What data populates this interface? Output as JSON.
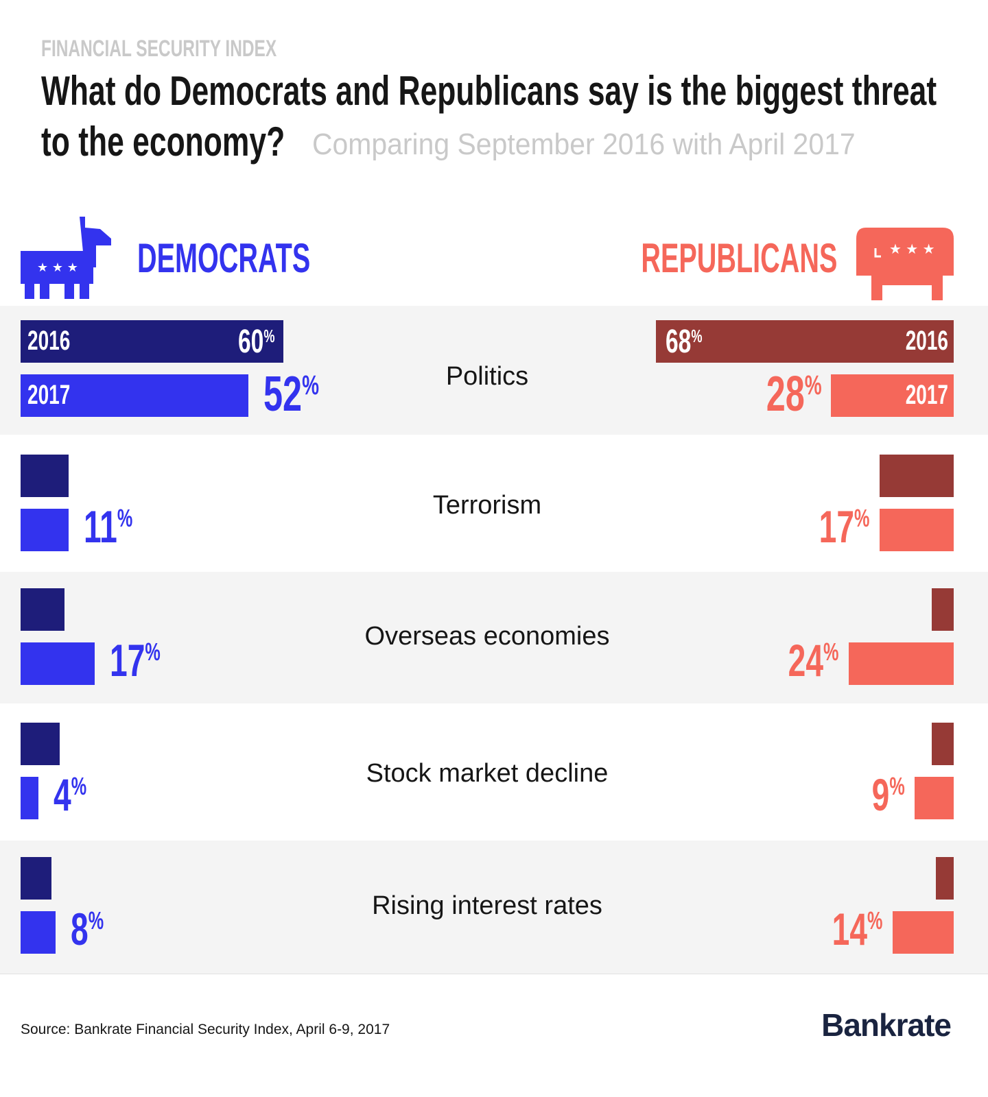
{
  "header": {
    "kicker": "FINANCIAL SECURITY INDEX",
    "title_line1": "What do Democrats and Republicans say is the biggest threat",
    "title_line2": "to the economy?",
    "subtitle": "Comparing September 2016 with April 2017"
  },
  "parties": {
    "democrats": {
      "label": "DEMOCRATS",
      "icon": "donkey-icon",
      "color": "#3333ee",
      "color_2016": "#1e1d7a"
    },
    "republicans": {
      "label": "REPUBLICANS",
      "icon": "elephant-icon",
      "color": "#f5675a",
      "color_2016": "#963a36"
    }
  },
  "chart_data": {
    "type": "bar",
    "categories": [
      "Politics",
      "Terrorism",
      "Overseas economies",
      "Stock market decline",
      "Rising interest rates"
    ],
    "series": [
      {
        "name": "2016",
        "party": "Democrats",
        "values": [
          60,
          11,
          10,
          9,
          7
        ]
      },
      {
        "name": "2017",
        "party": "Democrats",
        "values": [
          52,
          11,
          17,
          4,
          8
        ]
      },
      {
        "name": "2016",
        "party": "Republicans",
        "values": [
          68,
          17,
          5,
          5,
          4
        ]
      },
      {
        "name": "2017",
        "party": "Republicans",
        "values": [
          28,
          17,
          24,
          9,
          14
        ]
      }
    ],
    "labels": {
      "dem_2016_first": "60%",
      "rep_2016_first": "68%",
      "dem_2017": [
        "52%",
        "11 %",
        "17 %",
        "4%",
        "8%"
      ],
      "rep_2017": [
        "28%",
        "17 %",
        "24%",
        "9%",
        "14%"
      ]
    },
    "bar_year_labels": [
      "2016",
      "2017"
    ],
    "colors": {
      "dem_2016": "#1e1d7a",
      "dem_2017": "#3333ee",
      "rep_2016": "#963a36",
      "rep_2017": "#f5675a",
      "band": "#f4f4f4"
    }
  },
  "footer": {
    "source": "Source: Bankrate Financial Security Index, April 6-9, 2017",
    "logo": "Bankrate"
  }
}
